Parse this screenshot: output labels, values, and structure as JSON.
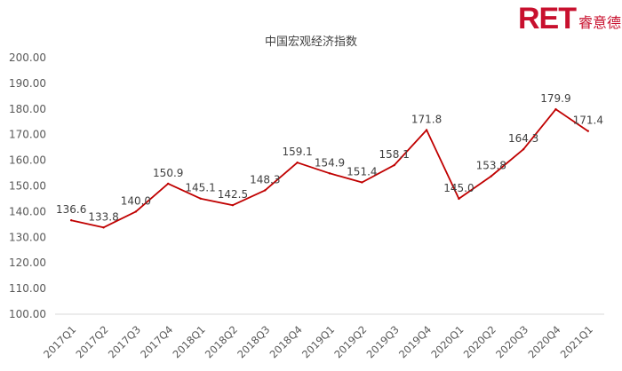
{
  "brand": {
    "mark": "RET",
    "name": "睿意德"
  },
  "chart_data": {
    "type": "line",
    "title": "中国宏观经济指数",
    "categories": [
      "2017Q1",
      "2017Q2",
      "2017Q3",
      "2017Q4",
      "2018Q1",
      "2018Q2",
      "2018Q3",
      "2018Q4",
      "2019Q1",
      "2019Q2",
      "2019Q3",
      "2019Q4",
      "2020Q1",
      "2020Q2",
      "2020Q3",
      "2020Q4",
      "2021Q1"
    ],
    "series": [
      {
        "values": [
          136.6,
          133.8,
          140.0,
          150.9,
          145.1,
          142.5,
          148.3,
          159.1,
          154.9,
          151.4,
          158.1,
          171.8,
          145.0,
          153.8,
          164.3,
          179.9,
          171.4
        ],
        "labels": [
          "136.6",
          "133.8",
          "140.0",
          "150.9",
          "145.1",
          "142.5",
          "148.3",
          "159.1",
          "154.9",
          "151.4",
          "158.1",
          "171.8",
          "145.0",
          "153.8",
          "164.3",
          "179.9",
          "171.4"
        ]
      }
    ],
    "y_ticks": [
      "100.00",
      "110.00",
      "120.00",
      "130.00",
      "140.00",
      "150.00",
      "160.00",
      "170.00",
      "180.00",
      "190.00",
      "200.00"
    ],
    "ylim": [
      100,
      200
    ],
    "grid": false,
    "legend": "none",
    "line_color": "#c00000"
  }
}
